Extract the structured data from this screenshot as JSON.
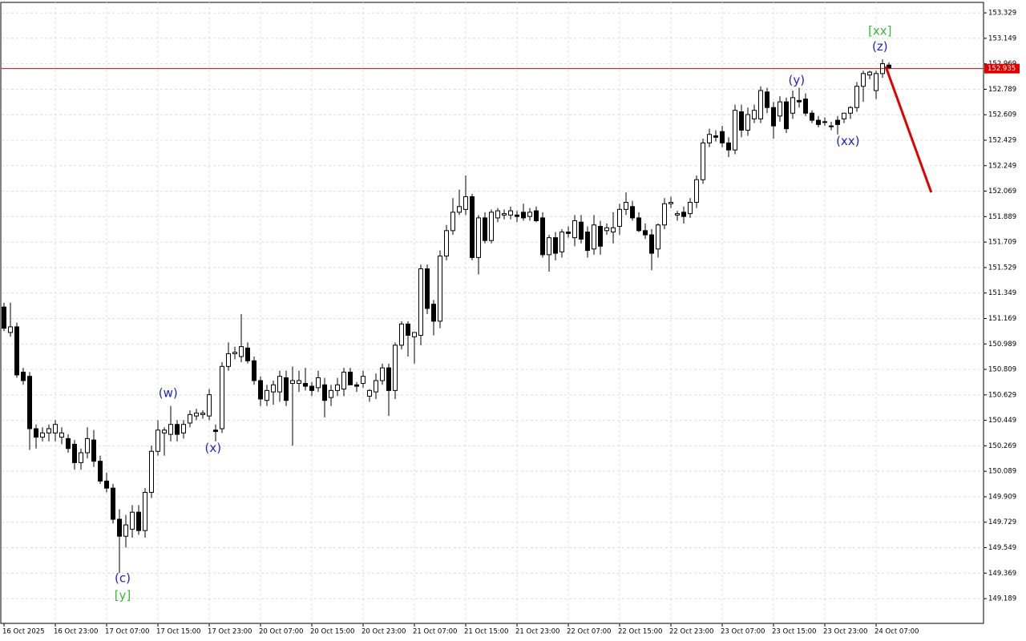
{
  "chart_data": {
    "type": "candlestick",
    "categories": [
      "16 Oct 2025",
      null,
      null,
      null,
      null,
      null,
      null,
      null,
      "16 Oct 23:00",
      null,
      null,
      null,
      null,
      null,
      null,
      null,
      "17 Oct 07:00",
      null,
      null,
      null,
      null,
      null,
      null,
      null,
      "17 Oct 15:00",
      null,
      null,
      null,
      null,
      null,
      null,
      null,
      "17 Oct 23:00",
      null,
      null,
      null,
      null,
      null,
      null,
      null,
      "20 Oct 07:00",
      null,
      null,
      null,
      null,
      null,
      null,
      null,
      "20 Oct 15:00",
      null,
      null,
      null,
      null,
      null,
      null,
      null,
      "20 Oct 23:00",
      null,
      null,
      null,
      null,
      null,
      null,
      null,
      "21 Oct 07:00",
      null,
      null,
      null,
      null,
      null,
      null,
      null,
      "21 Oct 15:00",
      null,
      null,
      null,
      null,
      null,
      null,
      null,
      "21 Oct 23:00",
      null,
      null,
      null,
      null,
      null,
      null,
      null,
      "22 Oct 07:00",
      null,
      null,
      null,
      null,
      null,
      null,
      null,
      "22 Oct 15:00",
      null,
      null,
      null,
      null,
      null,
      null,
      null,
      "22 Oct 23:00",
      null,
      null,
      null,
      null,
      null,
      null,
      null,
      "23 Oct 07:00",
      null,
      null,
      null,
      null,
      null,
      null,
      null,
      "23 Oct 15:00",
      null,
      null,
      null,
      null,
      null,
      null,
      null,
      "23 Oct 23:00",
      null,
      null,
      null,
      null,
      null,
      null,
      null,
      "24 Oct 07:00",
      null,
      null
    ],
    "ohlc": [
      [
        151.25,
        151.28,
        151.08,
        151.1
      ],
      [
        151.07,
        151.28,
        151.04,
        151.11
      ],
      [
        151.11,
        151.14,
        150.75,
        150.77
      ],
      [
        150.79,
        150.82,
        150.7,
        150.73
      ],
      [
        150.76,
        150.79,
        150.24,
        150.39
      ],
      [
        150.39,
        150.42,
        150.25,
        150.33
      ],
      [
        150.33,
        150.4,
        150.3,
        150.36
      ],
      [
        150.36,
        150.42,
        150.3,
        150.39
      ],
      [
        150.36,
        150.45,
        150.3,
        150.42
      ],
      [
        150.33,
        150.4,
        150.28,
        150.36
      ],
      [
        150.32,
        150.35,
        150.22,
        150.25
      ],
      [
        150.28,
        150.31,
        150.1,
        150.15
      ],
      [
        150.15,
        150.25,
        150.1,
        150.22
      ],
      [
        150.22,
        150.4,
        150.18,
        150.32
      ],
      [
        150.31,
        150.38,
        150.12,
        150.16
      ],
      [
        150.16,
        150.2,
        150.0,
        150.02
      ],
      [
        150.02,
        150.08,
        149.94,
        149.97
      ],
      [
        149.97,
        150.0,
        149.72,
        149.75
      ],
      [
        149.75,
        149.82,
        149.37,
        149.63
      ],
      [
        149.63,
        149.78,
        149.55,
        149.71
      ],
      [
        149.68,
        149.85,
        149.62,
        149.8
      ],
      [
        149.8,
        149.85,
        149.64,
        149.67
      ],
      [
        149.67,
        149.97,
        149.62,
        149.94
      ],
      [
        149.94,
        150.27,
        149.9,
        150.23
      ],
      [
        150.23,
        150.45,
        150.2,
        150.38
      ],
      [
        150.36,
        150.4,
        150.2,
        150.38
      ],
      [
        150.35,
        150.55,
        150.3,
        150.42
      ],
      [
        150.42,
        150.45,
        150.3,
        150.35
      ],
      [
        150.36,
        150.45,
        150.32,
        150.42
      ],
      [
        150.43,
        150.52,
        150.4,
        150.49
      ],
      [
        150.48,
        150.53,
        150.45,
        150.5
      ],
      [
        150.49,
        150.52,
        150.46,
        150.5
      ],
      [
        150.48,
        150.67,
        150.45,
        150.63
      ],
      [
        150.38,
        150.42,
        150.3,
        150.37
      ],
      [
        150.39,
        150.86,
        150.36,
        150.83
      ],
      [
        150.83,
        151.0,
        150.8,
        150.92
      ],
      [
        150.92,
        150.97,
        150.88,
        150.93
      ],
      [
        150.9,
        151.2,
        150.86,
        150.97
      ],
      [
        150.96,
        151.0,
        150.85,
        150.87
      ],
      [
        150.87,
        150.9,
        150.7,
        150.73
      ],
      [
        150.73,
        150.76,
        150.55,
        150.6
      ],
      [
        150.59,
        150.7,
        150.55,
        150.66
      ],
      [
        150.65,
        150.73,
        150.56,
        150.7
      ],
      [
        150.65,
        150.8,
        150.58,
        150.76
      ],
      [
        150.75,
        150.8,
        150.55,
        150.59
      ],
      [
        150.71,
        150.83,
        150.27,
        150.73
      ],
      [
        150.71,
        150.8,
        150.65,
        150.73
      ],
      [
        150.71,
        150.82,
        150.66,
        150.69
      ],
      [
        150.69,
        150.72,
        150.62,
        150.66
      ],
      [
        150.68,
        150.8,
        150.65,
        150.75
      ],
      [
        150.7,
        150.75,
        150.47,
        150.59
      ],
      [
        150.61,
        150.7,
        150.55,
        150.66
      ],
      [
        150.66,
        150.75,
        150.62,
        150.7
      ],
      [
        150.67,
        150.82,
        150.62,
        150.79
      ],
      [
        150.79,
        150.82,
        150.7,
        150.7
      ],
      [
        150.7,
        150.72,
        150.65,
        150.69
      ],
      [
        150.71,
        150.8,
        150.68,
        150.76
      ],
      [
        150.62,
        150.67,
        150.58,
        150.66
      ],
      [
        150.65,
        150.78,
        150.6,
        150.73
      ],
      [
        150.73,
        150.85,
        150.7,
        150.82
      ],
      [
        150.82,
        150.85,
        150.48,
        150.66
      ],
      [
        150.66,
        151.0,
        150.6,
        150.98
      ],
      [
        150.98,
        151.15,
        150.95,
        151.13
      ],
      [
        151.13,
        151.15,
        150.9,
        151.05
      ],
      [
        151.04,
        151.07,
        150.85,
        151.07
      ],
      [
        151.05,
        151.55,
        150.98,
        151.52
      ],
      [
        151.52,
        151.55,
        151.2,
        151.24
      ],
      [
        151.27,
        151.3,
        151.05,
        151.15
      ],
      [
        151.15,
        151.65,
        151.1,
        151.61
      ],
      [
        151.61,
        151.83,
        151.58,
        151.79
      ],
      [
        151.79,
        152.02,
        151.76,
        151.92
      ],
      [
        151.92,
        152.08,
        151.9,
        151.96
      ],
      [
        151.94,
        152.18,
        151.9,
        152.03
      ],
      [
        152.03,
        152.05,
        151.58,
        151.6
      ],
      [
        151.6,
        151.9,
        151.48,
        151.88
      ],
      [
        151.88,
        151.92,
        151.7,
        151.72
      ],
      [
        151.72,
        151.94,
        151.7,
        151.92
      ],
      [
        151.88,
        151.95,
        151.85,
        151.93
      ],
      [
        151.9,
        151.94,
        151.87,
        151.91
      ],
      [
        151.9,
        151.96,
        151.87,
        151.93
      ],
      [
        151.9,
        151.93,
        151.85,
        151.89
      ],
      [
        151.92,
        151.98,
        151.86,
        151.88
      ],
      [
        151.89,
        151.95,
        151.86,
        151.92
      ],
      [
        151.93,
        151.96,
        151.85,
        151.86
      ],
      [
        151.88,
        151.92,
        151.6,
        151.62
      ],
      [
        151.62,
        151.76,
        151.5,
        151.74
      ],
      [
        151.74,
        151.78,
        151.58,
        151.63
      ],
      [
        151.64,
        151.8,
        151.6,
        151.78
      ],
      [
        151.78,
        151.82,
        151.74,
        151.77
      ],
      [
        151.74,
        151.9,
        151.68,
        151.86
      ],
      [
        151.85,
        151.9,
        151.7,
        151.73
      ],
      [
        151.78,
        151.82,
        151.6,
        151.65
      ],
      [
        151.66,
        151.9,
        151.62,
        151.83
      ],
      [
        151.82,
        151.86,
        151.62,
        151.68
      ],
      [
        151.79,
        151.84,
        151.76,
        151.81
      ],
      [
        151.78,
        151.92,
        151.7,
        151.81
      ],
      [
        151.82,
        151.98,
        151.76,
        151.94
      ],
      [
        151.94,
        152.06,
        151.9,
        151.99
      ],
      [
        151.96,
        152.0,
        151.86,
        151.88
      ],
      [
        151.88,
        151.92,
        151.78,
        151.79
      ],
      [
        151.79,
        151.84,
        151.73,
        151.76
      ],
      [
        151.76,
        151.8,
        151.51,
        151.63
      ],
      [
        151.66,
        151.84,
        151.6,
        151.83
      ],
      [
        151.83,
        152.02,
        151.8,
        151.98
      ],
      [
        151.98,
        152.03,
        151.95,
        151.99
      ],
      [
        151.9,
        151.93,
        151.86,
        151.91
      ],
      [
        151.92,
        151.96,
        151.84,
        151.89
      ],
      [
        151.91,
        152.02,
        151.88,
        151.99
      ],
      [
        151.99,
        152.18,
        151.95,
        152.15
      ],
      [
        152.15,
        152.44,
        152.12,
        152.41
      ],
      [
        152.41,
        152.51,
        152.38,
        152.47
      ],
      [
        152.46,
        152.5,
        152.42,
        152.45
      ],
      [
        152.49,
        152.53,
        152.38,
        152.41
      ],
      [
        152.41,
        152.45,
        152.31,
        152.36
      ],
      [
        152.36,
        152.68,
        152.33,
        152.64
      ],
      [
        152.63,
        152.68,
        152.45,
        152.5
      ],
      [
        152.5,
        152.66,
        152.46,
        152.61
      ],
      [
        152.58,
        152.68,
        152.55,
        152.64
      ],
      [
        152.58,
        152.81,
        152.55,
        152.78
      ],
      [
        152.77,
        152.8,
        152.62,
        152.66
      ],
      [
        152.66,
        152.7,
        152.44,
        152.53
      ],
      [
        152.6,
        152.74,
        152.56,
        152.7
      ],
      [
        152.7,
        152.73,
        152.48,
        152.51
      ],
      [
        152.62,
        152.78,
        152.58,
        152.73
      ],
      [
        152.71,
        152.8,
        152.66,
        152.7
      ],
      [
        152.72,
        152.76,
        152.6,
        152.62
      ],
      [
        152.62,
        152.64,
        152.55,
        152.57
      ],
      [
        152.57,
        152.6,
        152.52,
        152.54
      ],
      [
        152.56,
        152.59,
        152.53,
        152.56
      ],
      [
        152.53,
        152.56,
        152.5,
        152.53
      ],
      [
        152.57,
        152.6,
        152.47,
        152.54
      ],
      [
        152.58,
        152.62,
        152.55,
        152.62
      ],
      [
        152.62,
        152.67,
        152.58,
        152.66
      ],
      [
        152.66,
        152.84,
        152.63,
        152.81
      ],
      [
        152.81,
        152.92,
        152.7,
        152.9
      ],
      [
        152.89,
        152.92,
        152.86,
        152.91
      ],
      [
        152.78,
        152.92,
        152.72,
        152.9
      ],
      [
        152.9,
        153.0,
        152.87,
        152.97
      ],
      [
        152.96,
        152.98,
        152.93,
        152.94
      ]
    ],
    "up_color": "#ffffff",
    "down_color": "#000000",
    "ylim": [
      149.014,
      153.403
    ],
    "yticks": [
      149.189,
      149.369,
      149.549,
      149.729,
      149.909,
      150.089,
      150.269,
      150.449,
      150.629,
      150.809,
      150.989,
      151.169,
      151.349,
      151.529,
      151.709,
      151.889,
      152.069,
      152.249,
      152.429,
      152.609,
      152.789,
      152.969,
      153.149,
      153.329
    ],
    "grid": true,
    "last_price": 152.935,
    "last_price_color": "#e00000",
    "forecast": {
      "color": "#e00000",
      "x": [
        137.5,
        144.6
      ],
      "y": [
        152.95,
        152.06
      ]
    },
    "annotations": [
      {
        "text": "(w)",
        "color": "#2222cc",
        "x": 25.6,
        "y": 150.64
      },
      {
        "text": "(x)",
        "color": "#2222cc",
        "x": 32.6,
        "y": 150.25
      },
      {
        "text": "(c)",
        "color": "#2222cc",
        "x": 18.5,
        "y": 149.33
      },
      {
        "text": "[y]",
        "color": "#33bb33",
        "x": 18.5,
        "y": 149.21
      },
      {
        "text": "(y)",
        "color": "#2222cc",
        "x": 123.6,
        "y": 152.85
      },
      {
        "text": "(xx)",
        "color": "#2222cc",
        "x": 131.6,
        "y": 152.42
      },
      {
        "text": "(z)",
        "color": "#2222cc",
        "x": 136.6,
        "y": 153.09
      },
      {
        "text": "[xx]",
        "color": "#33bb33",
        "x": 136.6,
        "y": 153.2
      }
    ]
  }
}
